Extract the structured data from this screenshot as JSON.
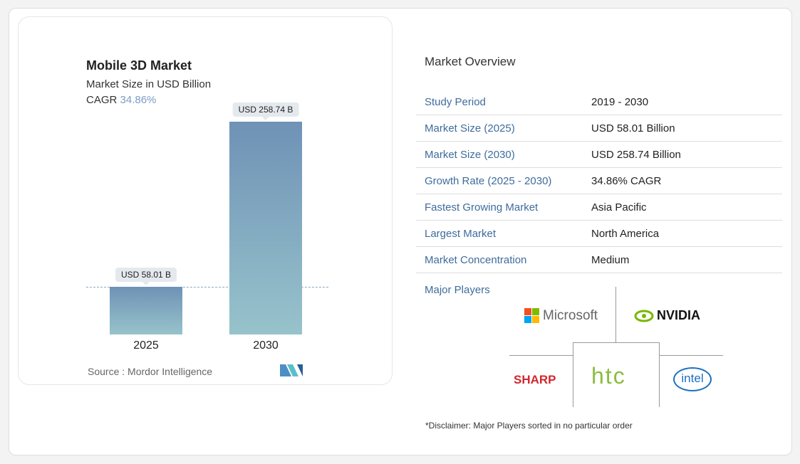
{
  "chart_data": {
    "type": "bar",
    "title": "Mobile 3D Market",
    "subtitle": "Market Size in USD Billion",
    "cagr_label": "CAGR",
    "cagr_value": "34.86%",
    "categories": [
      "2025",
      "2030"
    ],
    "values": [
      58.01,
      258.74
    ],
    "data_labels": [
      "USD 58.01 B",
      "USD 258.74 B"
    ],
    "colors": [
      "#6f92b6",
      "#97c3cb"
    ],
    "source": "Source :  Mordor Intelligence"
  },
  "overview": {
    "title": "Market Overview",
    "rows": [
      {
        "k": "Study Period",
        "v": "2019 - 2030"
      },
      {
        "k": "Market Size (2025)",
        "v": "USD 58.01 Billion"
      },
      {
        "k": "Market Size (2030)",
        "v": "USD 258.74 Billion"
      },
      {
        "k": "Growth Rate (2025 - 2030)",
        "v": "34.86% CAGR"
      },
      {
        "k": "Fastest Growing Market",
        "v": "Asia Pacific"
      },
      {
        "k": "Largest Market",
        "v": "North America"
      },
      {
        "k": "Market Concentration",
        "v": "Medium"
      }
    ],
    "major_players_label": "Major Players",
    "players": [
      "Microsoft",
      "NVIDIA",
      "SHARP",
      "htc",
      "intel"
    ],
    "disclaimer": "*Disclaimer: Major Players sorted in no particular order"
  }
}
